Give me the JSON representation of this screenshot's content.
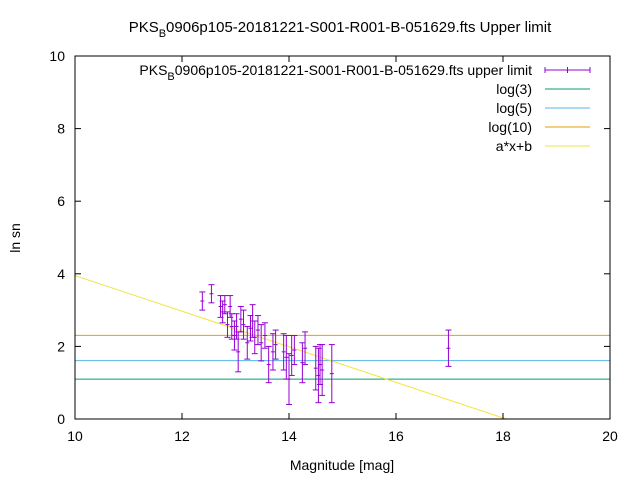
{
  "chart_data": {
    "type": "scatter",
    "title_main": "PKS",
    "title_sub": "B",
    "title_rest": "0906p105-20181221-S001-R001-B-051629.fts Upper limit",
    "xlabel": "Magnitude [mag]",
    "ylabel": "ln sn",
    "xlim": [
      10,
      20
    ],
    "ylim": [
      0,
      10
    ],
    "xticks": [
      10,
      12,
      14,
      16,
      18,
      20
    ],
    "yticks": [
      0,
      2,
      4,
      6,
      8,
      10
    ],
    "grid": false,
    "legend_position": "top-right",
    "legend": [
      {
        "main": "PKS",
        "sub": "B",
        "rest": "0906p105-20181221-S001-R001-B-051629.fts upper limit",
        "color": "#9400d3",
        "kind": "errorbar"
      },
      {
        "label": "log(3)",
        "color": "#009e73",
        "kind": "line"
      },
      {
        "label": "log(5)",
        "color": "#56b4e9",
        "kind": "line"
      },
      {
        "label": "log(10)",
        "color": "#e69f00",
        "kind": "line"
      },
      {
        "label": "a*x+b",
        "color": "#f0e442",
        "kind": "line"
      }
    ],
    "hlines": [
      {
        "name": "log(3)",
        "y": 1.0986,
        "color": "#009e73"
      },
      {
        "name": "log(5)",
        "y": 1.6094,
        "color": "#56b4e9"
      },
      {
        "name": "log(10)",
        "y": 2.3026,
        "color": "#e69f00"
      }
    ],
    "fit_line": {
      "name": "a*x+b",
      "slope": -0.49,
      "intercept": 8.85,
      "color": "#f0e442"
    },
    "series": [
      {
        "name": "PKS B0906p105-20181221-S001-R001-B-051629.fts upper limit",
        "color": "#9400d3",
        "points": [
          {
            "x": 12.38,
            "y": 3.25,
            "err": 0.25
          },
          {
            "x": 12.55,
            "y": 3.45,
            "err": 0.25
          },
          {
            "x": 12.72,
            "y": 3.1,
            "err": 0.3
          },
          {
            "x": 12.76,
            "y": 2.95,
            "err": 0.3
          },
          {
            "x": 12.8,
            "y": 3.15,
            "err": 0.25
          },
          {
            "x": 12.85,
            "y": 2.6,
            "err": 0.35
          },
          {
            "x": 12.9,
            "y": 3.1,
            "err": 0.3
          },
          {
            "x": 12.93,
            "y": 2.55,
            "err": 0.35
          },
          {
            "x": 12.98,
            "y": 2.3,
            "err": 0.4
          },
          {
            "x": 13.02,
            "y": 2.55,
            "err": 0.35
          },
          {
            "x": 13.05,
            "y": 1.85,
            "err": 0.55
          },
          {
            "x": 13.1,
            "y": 2.75,
            "err": 0.35
          },
          {
            "x": 13.15,
            "y": 2.6,
            "err": 0.4
          },
          {
            "x": 13.22,
            "y": 2.1,
            "err": 0.45
          },
          {
            "x": 13.28,
            "y": 2.5,
            "err": 0.35
          },
          {
            "x": 13.32,
            "y": 2.7,
            "err": 0.45
          },
          {
            "x": 13.36,
            "y": 2.25,
            "err": 0.45
          },
          {
            "x": 13.42,
            "y": 2.45,
            "err": 0.4
          },
          {
            "x": 13.48,
            "y": 2.1,
            "err": 0.5
          },
          {
            "x": 13.55,
            "y": 2.3,
            "err": 0.35
          },
          {
            "x": 13.62,
            "y": 1.5,
            "err": 0.5
          },
          {
            "x": 13.7,
            "y": 1.85,
            "err": 0.5
          },
          {
            "x": 13.75,
            "y": 2.05,
            "err": 0.4
          },
          {
            "x": 13.9,
            "y": 1.85,
            "err": 0.5
          },
          {
            "x": 13.95,
            "y": 1.7,
            "err": 0.6
          },
          {
            "x": 14.0,
            "y": 1.1,
            "err": 0.7
          },
          {
            "x": 14.05,
            "y": 1.75,
            "err": 0.55
          },
          {
            "x": 14.1,
            "y": 1.9,
            "err": 0.4
          },
          {
            "x": 14.25,
            "y": 1.55,
            "err": 0.55
          },
          {
            "x": 14.3,
            "y": 1.95,
            "err": 0.45
          },
          {
            "x": 14.5,
            "y": 1.4,
            "err": 0.6
          },
          {
            "x": 14.55,
            "y": 1.2,
            "err": 0.75
          },
          {
            "x": 14.58,
            "y": 1.5,
            "err": 0.55
          },
          {
            "x": 14.62,
            "y": 1.35,
            "err": 0.7
          },
          {
            "x": 14.8,
            "y": 1.25,
            "err": 0.8
          },
          {
            "x": 16.98,
            "y": 1.95,
            "err": 0.5
          }
        ]
      }
    ]
  }
}
